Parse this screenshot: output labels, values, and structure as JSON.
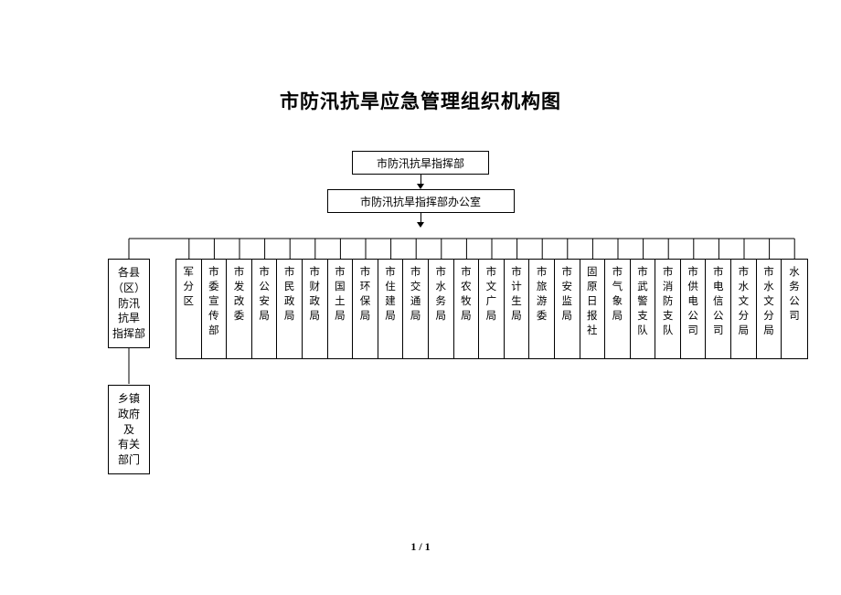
{
  "title": "市防汛抗旱应急管理组织机构图",
  "level1": "市防汛抗旱指挥部",
  "level2": "市防汛抗旱指挥部办公室",
  "leftBox1_l1": "各县",
  "leftBox1_l2": "（区）",
  "leftBox1_l3": "防汛",
  "leftBox1_l4": "抗旱",
  "leftBox1_l5": "指挥部",
  "leftBox2_l1": "乡镇",
  "leftBox2_l2": "政府",
  "leftBox2_l3": "及",
  "leftBox2_l4": "有关",
  "leftBox2_l5": "部门",
  "departments": [
    "军分区",
    "市委宣传部",
    "市发改委",
    "市公安局",
    "市民政局",
    "市财政局",
    "市国土局",
    "市环保局",
    "市住建局",
    "市交通局",
    "市水务局",
    "市农牧局",
    "市文广局",
    "市计生局",
    "市旅游委",
    "市安监局",
    "固原日报社",
    "市气象局",
    "市武警支队",
    "市消防支队",
    "市供电公司",
    "市电信公司",
    "市水文分局",
    "市水文分局",
    "水务公司"
  ],
  "pageNum": "1 / 1",
  "colors": {
    "border": "#000000",
    "bg": "#ffffff",
    "text": "#000000"
  },
  "layout": {
    "title_fontsize": 21,
    "box_fontsize": 12,
    "dept_fontsize": 11.5,
    "dept_count": 25,
    "dept_width": 27.6,
    "dept_height": 108
  }
}
